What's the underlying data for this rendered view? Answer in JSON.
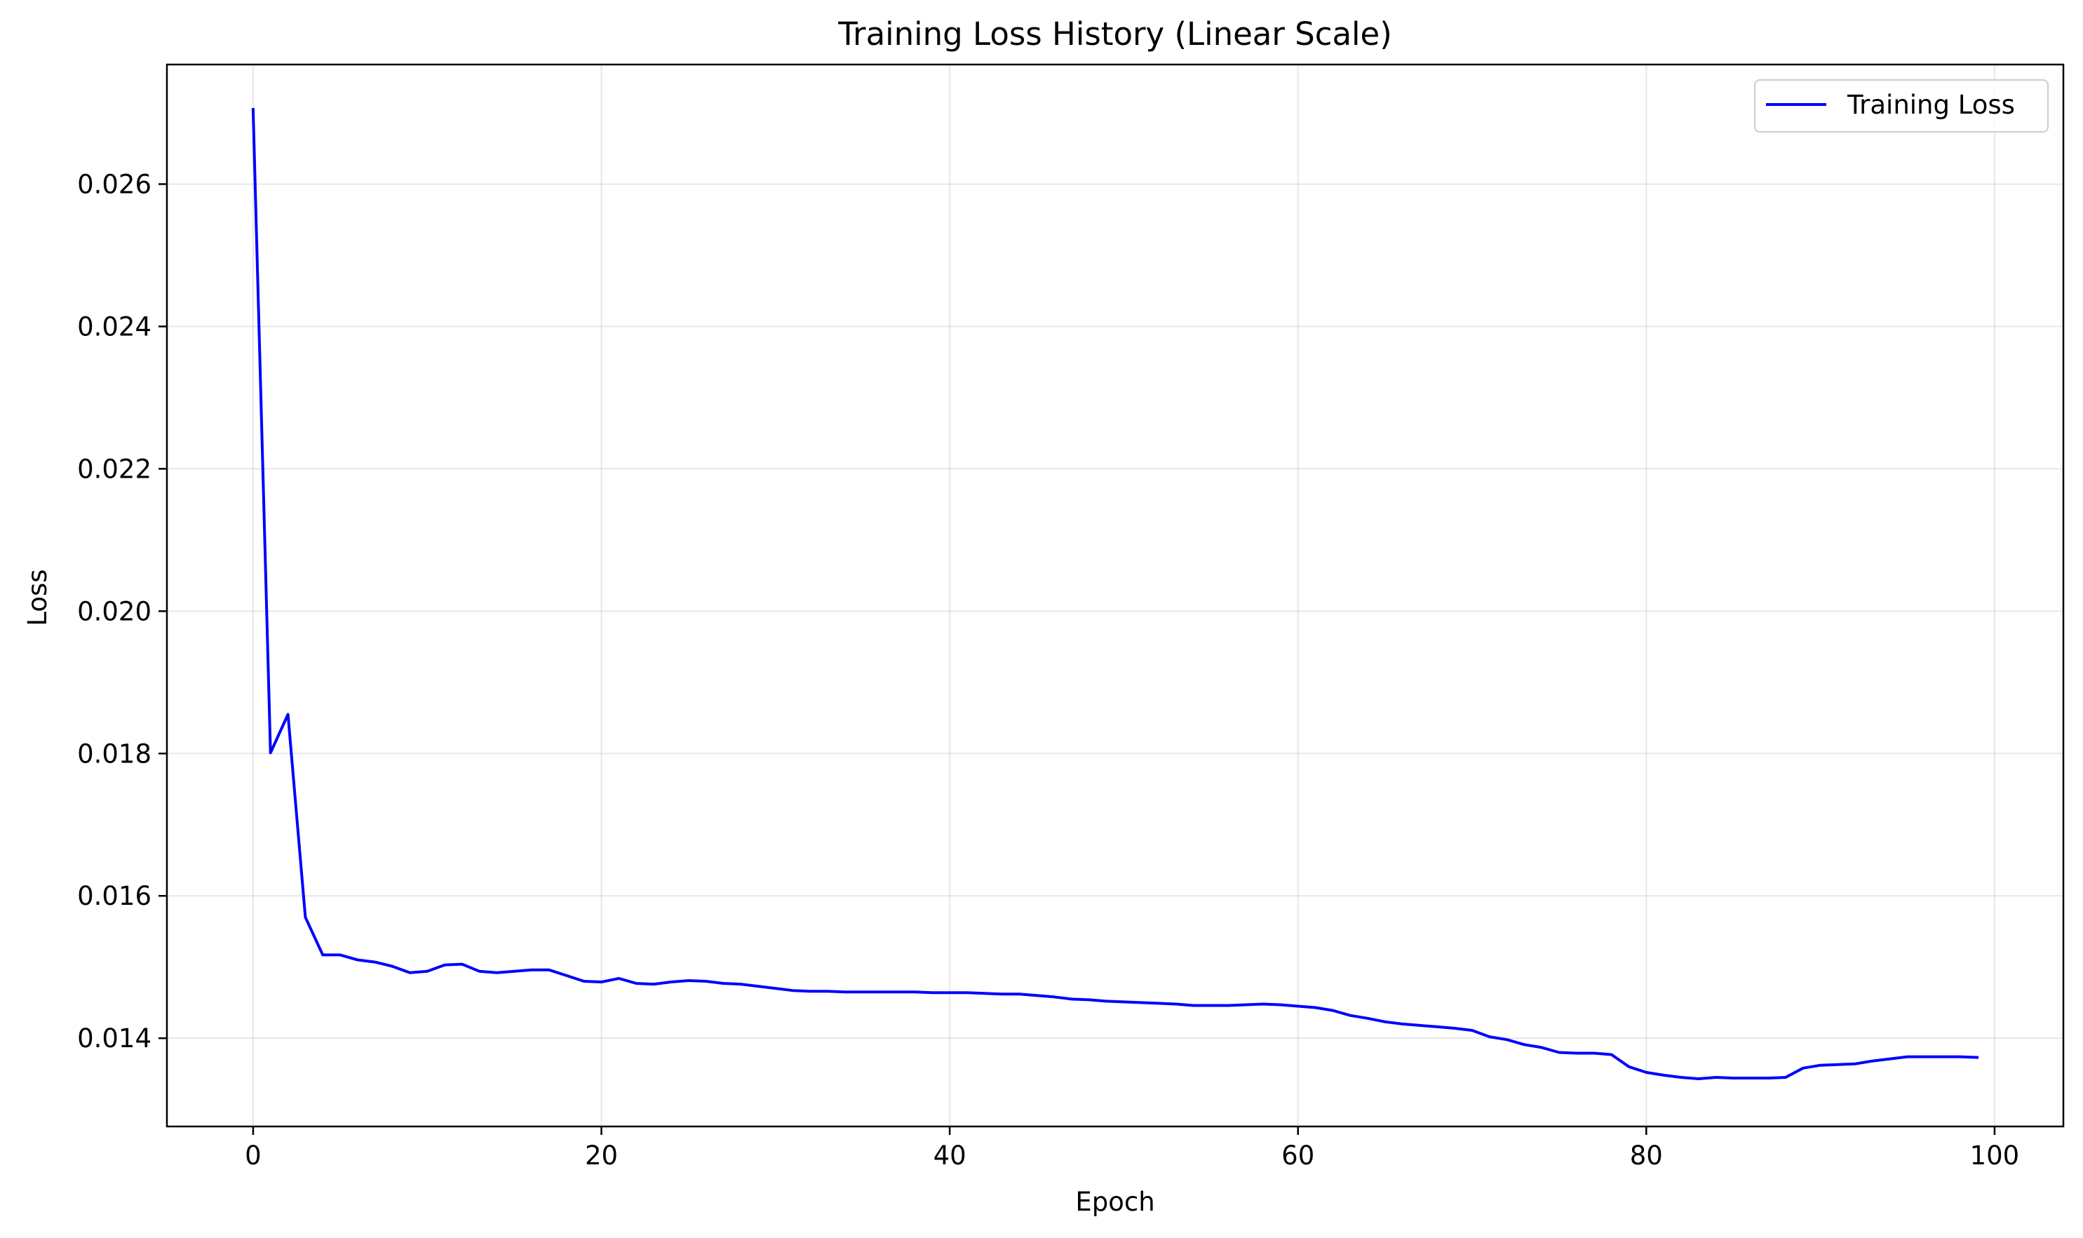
{
  "chart_data": {
    "type": "line",
    "title": "Training Loss History (Linear Scale)",
    "xlabel": "Epoch",
    "ylabel": "Loss",
    "xlim": [
      -4.95,
      103.95
    ],
    "ylim": [
      0.01276,
      0.02768
    ],
    "xticks": [
      0,
      20,
      40,
      60,
      80,
      100
    ],
    "yticks": [
      0.014,
      0.016,
      0.018,
      0.02,
      0.022,
      0.024,
      0.026
    ],
    "xtick_labels": [
      "0",
      "20",
      "40",
      "60",
      "80",
      "100"
    ],
    "ytick_labels": [
      "0.014",
      "0.016",
      "0.018",
      "0.020",
      "0.022",
      "0.024",
      "0.026"
    ],
    "grid": true,
    "legend_position": "top-right",
    "series": [
      {
        "name": "Training Loss",
        "color": "#0000ff",
        "x": [
          0,
          1,
          2,
          3,
          4,
          5,
          6,
          7,
          8,
          9,
          10,
          11,
          12,
          13,
          14,
          15,
          16,
          17,
          18,
          19,
          20,
          21,
          22,
          23,
          24,
          25,
          26,
          27,
          28,
          29,
          30,
          31,
          32,
          33,
          34,
          35,
          36,
          37,
          38,
          39,
          40,
          41,
          42,
          43,
          44,
          45,
          46,
          47,
          48,
          49,
          50,
          51,
          52,
          53,
          54,
          55,
          56,
          57,
          58,
          59,
          60,
          61,
          62,
          63,
          64,
          65,
          66,
          67,
          68,
          69,
          70,
          71,
          72,
          73,
          74,
          75,
          76,
          77,
          78,
          79,
          80,
          81,
          82,
          83,
          84,
          85,
          86,
          87,
          88,
          89,
          90,
          91,
          92,
          93,
          94,
          95,
          96,
          97,
          98,
          99
        ],
        "y": [
          0.02705,
          0.01801,
          0.01855,
          0.0157,
          0.01517,
          0.01517,
          0.0151,
          0.01507,
          0.01501,
          0.01492,
          0.01494,
          0.01503,
          0.01504,
          0.01494,
          0.01492,
          0.01494,
          0.01496,
          0.01496,
          0.01488,
          0.0148,
          0.01479,
          0.01484,
          0.01477,
          0.01476,
          0.01479,
          0.01481,
          0.0148,
          0.01477,
          0.01476,
          0.01473,
          0.0147,
          0.01467,
          0.01466,
          0.01466,
          0.01465,
          0.01465,
          0.01465,
          0.01465,
          0.01465,
          0.01464,
          0.01464,
          0.01464,
          0.01463,
          0.01462,
          0.01462,
          0.0146,
          0.01458,
          0.01455,
          0.01454,
          0.01452,
          0.01451,
          0.0145,
          0.01449,
          0.01448,
          0.01446,
          0.01446,
          0.01446,
          0.01447,
          0.01448,
          0.01447,
          0.01445,
          0.01443,
          0.01439,
          0.01432,
          0.01428,
          0.01423,
          0.0142,
          0.01418,
          0.01416,
          0.01414,
          0.01411,
          0.01402,
          0.01398,
          0.01391,
          0.01387,
          0.0138,
          0.01379,
          0.01379,
          0.01377,
          0.0136,
          0.01352,
          0.01348,
          0.01345,
          0.01343,
          0.01345,
          0.01344,
          0.01344,
          0.01344,
          0.01345,
          0.01358,
          0.01362,
          0.01363,
          0.01364,
          0.01368,
          0.01371,
          0.01374,
          0.01374,
          0.01374,
          0.01374,
          0.01373
        ]
      }
    ]
  }
}
